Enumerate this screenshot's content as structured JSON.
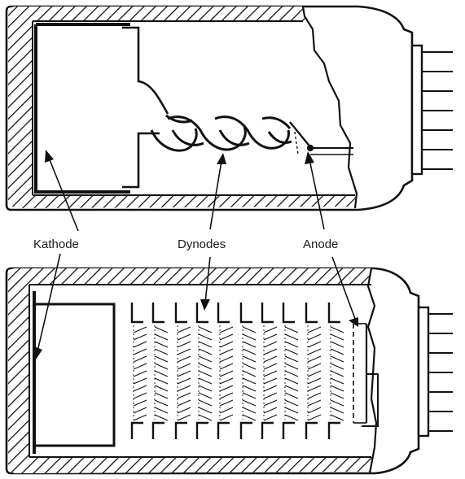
{
  "labels": {
    "kathode": "Kathode",
    "dynodes": "Dynodes",
    "anode": "Anode"
  },
  "colors": {
    "ink": "#111111",
    "background": "#ffffff"
  }
}
